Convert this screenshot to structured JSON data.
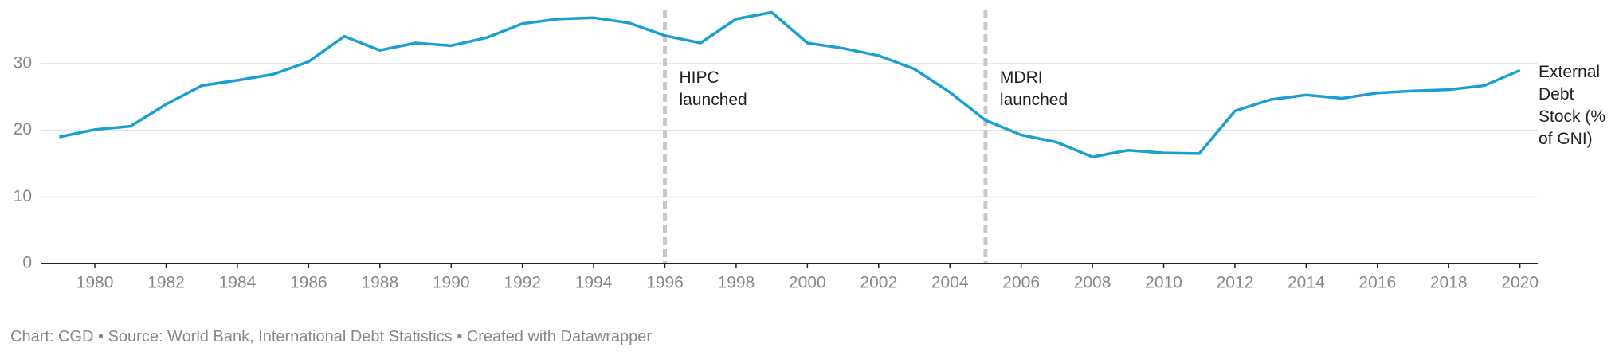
{
  "chart_data": {
    "type": "line",
    "x": [
      1979,
      1980,
      1981,
      1982,
      1983,
      1984,
      1985,
      1986,
      1987,
      1988,
      1989,
      1990,
      1991,
      1992,
      1993,
      1994,
      1995,
      1996,
      1997,
      1998,
      1999,
      2000,
      2001,
      2002,
      2003,
      2004,
      2005,
      2006,
      2007,
      2008,
      2009,
      2010,
      2011,
      2012,
      2013,
      2014,
      2015,
      2016,
      2017,
      2018,
      2019,
      2020
    ],
    "series": [
      {
        "name": "External Debt Stock (% of GNI)",
        "color": "#1a9fd0",
        "values": [
          19.0,
          20.1,
          20.6,
          23.9,
          26.7,
          27.5,
          28.4,
          30.3,
          34.1,
          32.0,
          33.1,
          32.7,
          33.9,
          36.0,
          36.7,
          36.9,
          36.1,
          34.2,
          33.1,
          36.7,
          37.7,
          33.1,
          32.3,
          31.2,
          29.2,
          25.7,
          21.5,
          19.3,
          18.2,
          16.0,
          17.0,
          16.6,
          16.5,
          22.9,
          24.6,
          25.3,
          24.8,
          25.6,
          25.9,
          26.1,
          26.7,
          29.0
        ]
      }
    ],
    "xlim": [
      1978.5,
      2020.5
    ],
    "xticks": [
      1980,
      1982,
      1984,
      1986,
      1988,
      1990,
      1992,
      1994,
      1996,
      1998,
      2000,
      2002,
      2004,
      2006,
      2008,
      2010,
      2012,
      2014,
      2016,
      2018,
      2020
    ],
    "ylim": [
      0,
      38
    ],
    "yticks": [
      0,
      10,
      20,
      30
    ],
    "grid": true,
    "annotations": [
      {
        "x": 1996,
        "label": "HIPC launched"
      },
      {
        "x": 2005,
        "label": "MDRI launched"
      }
    ],
    "footer": "Chart: CGD • Source: World Bank, International Debt Statistics • Created with Datawrapper"
  }
}
